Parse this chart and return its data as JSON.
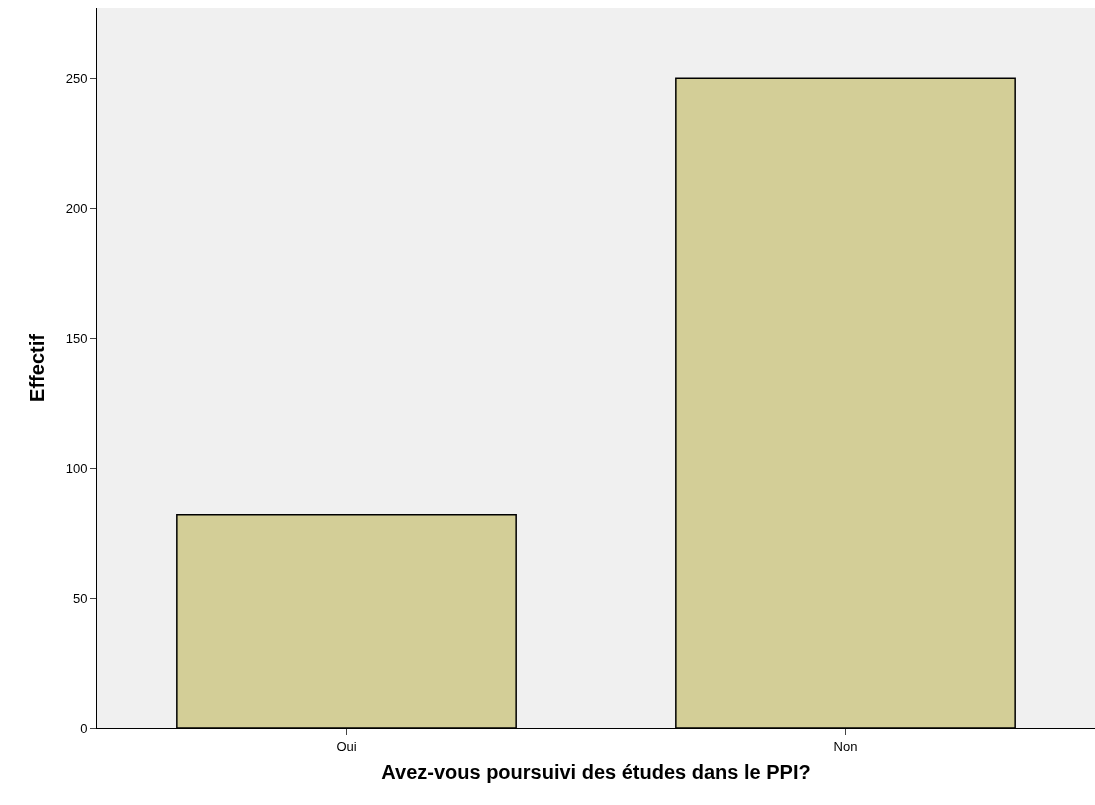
{
  "chart_data": {
    "type": "bar",
    "xlabel": "Avez-vous poursuivi des études dans le PPI?",
    "ylabel": "Effectif",
    "categories": [
      "Oui",
      "Non"
    ],
    "values": [
      82,
      250
    ],
    "color": "#d3ce97",
    "ylim": [
      0,
      277
    ],
    "yticks": [
      0,
      50,
      100,
      150,
      200,
      250
    ],
    "grid": false
  }
}
